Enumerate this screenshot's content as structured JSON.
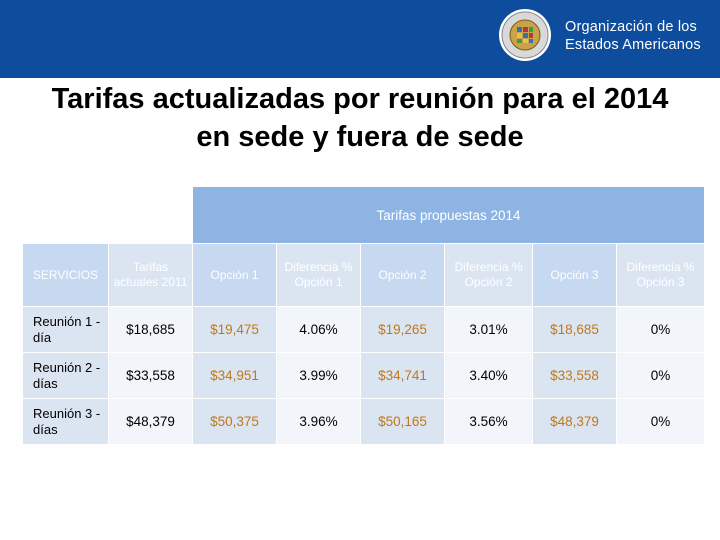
{
  "header": {
    "org_line1": "Organización de los",
    "org_line2": "Estados Americanos",
    "logo": "oas-seal-logo",
    "bar_color": "#0e4d9e"
  },
  "title": {
    "line1": "Tarifas actualizadas por reunión para el 2014",
    "line2": "en sede y fuera de sede"
  },
  "table": {
    "group_header": "Tarifas propuestas 2014",
    "columns": [
      "SERVICIOS",
      "Tarifas actuales 2011",
      "Opción 1",
      "Diferencia % Opción 1",
      "Opción 2",
      "Diferencia % Opción 2",
      "Opción 3",
      "Diferencia % Opción 3"
    ],
    "rows": [
      {
        "service": "Reunión 1 -día",
        "current": "$18,685",
        "op1": "$19,475",
        "diff1": "4.06%",
        "op2": "$19,265",
        "diff2": "3.01%",
        "op3": "$18,685",
        "diff3": "0%"
      },
      {
        "service": "Reunión 2 -días",
        "current": "$33,558",
        "op1": "$34,951",
        "diff1": "3.99%",
        "op2": "$34,741",
        "diff2": "3.40%",
        "op3": "$33,558",
        "diff3": "0%"
      },
      {
        "service": "Reunión 3 -días",
        "current": "$48,379",
        "op1": "$50,375",
        "diff1": "3.96%",
        "op2": "$50,165",
        "diff2": "3.56%",
        "op3": "$48,379",
        "diff3": "0%"
      }
    ],
    "colors": {
      "group_header_bg": "#8eb4e3",
      "cell_blue": "#dbe5f1",
      "option_text": "#c0771a"
    }
  }
}
